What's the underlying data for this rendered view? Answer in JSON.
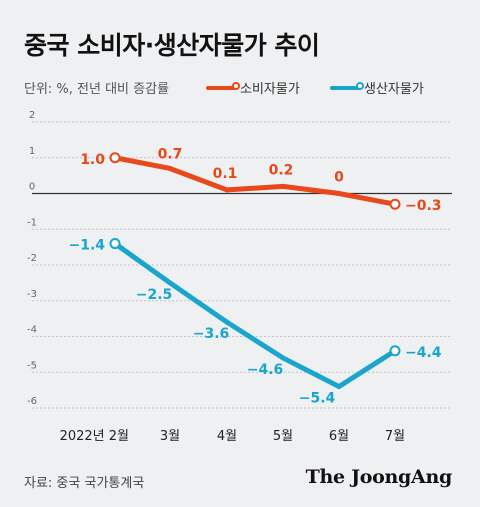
{
  "title": "중국 소비자·생산자물가 추이",
  "unit": "단위: %, 전년 대비 증감률",
  "source": "자료: 중국 국가통계국",
  "brand": "The JoongAng",
  "colors": {
    "consumer": "#e8481a",
    "producer": "#1aa5cc"
  },
  "chart_data": {
    "type": "line",
    "categories": [
      "2022년 2월",
      "3월",
      "4월",
      "5월",
      "6월",
      "7월"
    ],
    "y_ticks": [
      2,
      1,
      0,
      -1,
      -2,
      -3,
      -4,
      -5,
      -6
    ],
    "ylim": [
      -6,
      2
    ],
    "legend_position": "top-right",
    "series": [
      {
        "name": "소비자물가",
        "values": [
          1.0,
          0.7,
          0.1,
          0.2,
          0,
          -0.3
        ],
        "labels": [
          "1.0",
          "0.7",
          "0.1",
          "0.2",
          "0",
          "−0.3"
        ]
      },
      {
        "name": "생산자물가",
        "values": [
          -1.4,
          -2.5,
          -3.6,
          -4.6,
          -5.4,
          -4.4
        ],
        "labels": [
          "−1.4",
          "−2.5",
          "−3.6",
          "−4.6",
          "−5.4",
          "−4.4"
        ]
      }
    ]
  }
}
